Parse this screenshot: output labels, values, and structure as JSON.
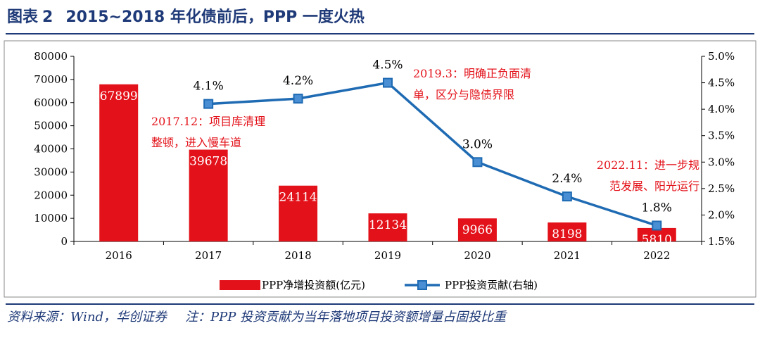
{
  "header": {
    "figure_label": "图表",
    "figure_number": "2",
    "title": "2015~2018 年化债前后，PPP 一度火热"
  },
  "footer": {
    "source": "资料来源：Wind，华创证券",
    "note": "注：PPP 投资贡献为当年落地项目投资额增量占固投比重"
  },
  "colors": {
    "title": "#1f3a78",
    "bar": "#e3121a",
    "line": "#1f6bb3",
    "marker_fill": "#4a8fd4",
    "annotation": "#e3121a"
  },
  "chart_data": {
    "type": "bar+line",
    "categories": [
      "2016",
      "2017",
      "2018",
      "2019",
      "2020",
      "2021",
      "2022"
    ],
    "series": [
      {
        "name": "PPP净增投资额(亿元)",
        "type": "bar",
        "axis": "left",
        "values": [
          67899,
          39678,
          24114,
          12134,
          9966,
          8198,
          5810
        ],
        "labels": [
          "67899",
          "39678",
          "24114",
          "12134",
          "9966",
          "8198",
          "5810"
        ]
      },
      {
        "name": "PPP投资贡献(右轴)",
        "type": "line",
        "axis": "right",
        "x": [
          "2017",
          "2018",
          "2019",
          "2020",
          "2021",
          "2022"
        ],
        "values": [
          4.1,
          4.2,
          4.5,
          3.0,
          2.35,
          1.8
        ],
        "labels": [
          "4.1%",
          "4.2%",
          "4.5%",
          "3.0%",
          "2.4%",
          "1.8%"
        ]
      }
    ],
    "y_left": {
      "range": [
        0,
        80000
      ],
      "ticks": [
        0,
        10000,
        20000,
        30000,
        40000,
        50000,
        60000,
        70000,
        80000
      ],
      "tick_labels": [
        "0",
        "10000",
        "20000",
        "30000",
        "40000",
        "50000",
        "60000",
        "70000",
        "80000"
      ]
    },
    "y_right": {
      "range": [
        1.5,
        5.0
      ],
      "ticks": [
        1.5,
        2.0,
        2.5,
        3.0,
        3.5,
        4.0,
        4.5,
        5.0
      ],
      "tick_labels": [
        "1.5%",
        "2.0%",
        "2.5%",
        "3.0%",
        "3.5%",
        "4.0%",
        "4.5%",
        "5.0%"
      ]
    },
    "annotations": [
      {
        "lines": [
          "2017.12：项目库清理",
          "整顿，进入慢车道"
        ],
        "anchor": "2017"
      },
      {
        "lines": [
          "2019.3：明确正负面清",
          "单，区分与隐债界限"
        ],
        "anchor": "2019"
      },
      {
        "lines": [
          "2022.11：进一步规",
          "范发展、阳光运行"
        ],
        "anchor": "2022"
      }
    ],
    "legend": {
      "position": "bottom",
      "items": [
        "PPP净增投资额(亿元)",
        "PPP投资贡献(右轴)"
      ]
    },
    "grid": false
  }
}
